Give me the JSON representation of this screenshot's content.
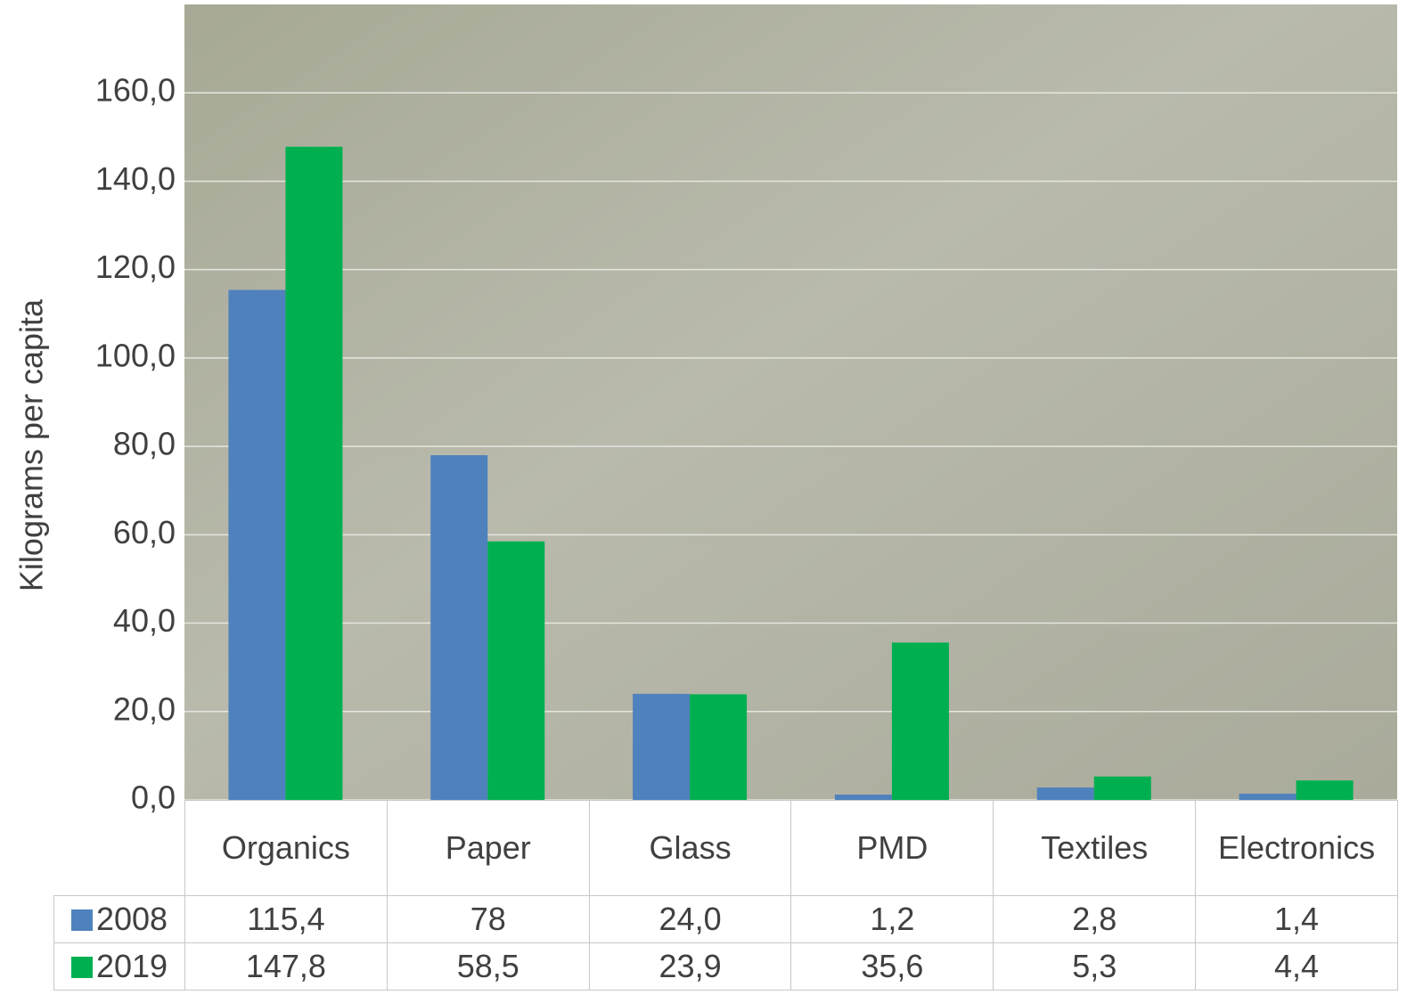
{
  "chart_data": {
    "type": "bar",
    "y_label": "Kilograms per capita",
    "categories": [
      "Organics",
      "Paper",
      "Glass",
      "PMD",
      "Textiles",
      "Electronics"
    ],
    "series": [
      {
        "name": "2008",
        "color": "#4f81bd",
        "values": [
          115.4,
          78,
          24.0,
          1.2,
          2.8,
          1.4
        ],
        "value_labels": [
          "115,4",
          "78",
          "24,0",
          "1,2",
          "2,8",
          "1,4"
        ]
      },
      {
        "name": "2019",
        "color": "#00b050",
        "values": [
          147.8,
          58.5,
          23.9,
          35.6,
          5.3,
          4.4
        ],
        "value_labels": [
          "147,8",
          "58,5",
          "23,9",
          "35,6",
          "5,3",
          "4,4"
        ]
      }
    ],
    "ylim": [
      0,
      180
    ],
    "yticks": [
      {
        "value": 0,
        "label": "0,0"
      },
      {
        "value": 20,
        "label": "20,0"
      },
      {
        "value": 40,
        "label": "40,0"
      },
      {
        "value": 60,
        "label": "60,0"
      },
      {
        "value": 80,
        "label": "80,0"
      },
      {
        "value": 100,
        "label": "100,0"
      },
      {
        "value": 120,
        "label": "120,0"
      },
      {
        "value": 140,
        "label": "140,0"
      },
      {
        "value": 160,
        "label": "160,0"
      }
    ],
    "grid": true
  }
}
